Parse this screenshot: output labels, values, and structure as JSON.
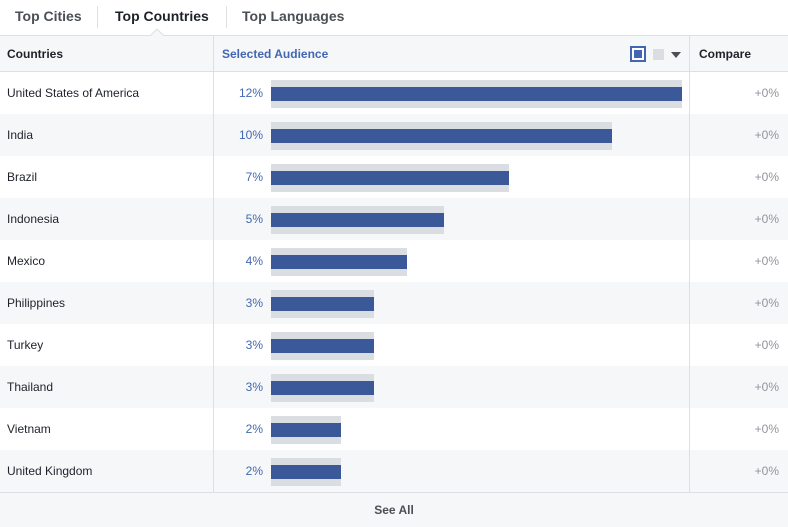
{
  "tabs": [
    {
      "label": "Top Cities",
      "active": false
    },
    {
      "label": "Top Countries",
      "active": true
    },
    {
      "label": "Top Languages",
      "active": false
    }
  ],
  "table": {
    "col_countries": "Countries",
    "col_selected": "Selected Audience",
    "col_compare": "Compare",
    "legend": {
      "selected_color": "#4267b2",
      "compare_color": "#dadde1",
      "dropdown_icon": "chevron-down-icon"
    }
  },
  "colors": {
    "bar_fill": "#3b5998",
    "bar_track": "#dadde1",
    "link_blue": "#4267b2"
  },
  "chart_data": {
    "type": "bar",
    "categories": [
      "United States of America",
      "India",
      "Brazil",
      "Indonesia",
      "Mexico",
      "Philippines",
      "Turkey",
      "Thailand",
      "Vietnam",
      "United Kingdom"
    ],
    "values": [
      12,
      10,
      7,
      5,
      4,
      3,
      3,
      3,
      2,
      2
    ],
    "value_labels": [
      "12%",
      "10%",
      "7%",
      "5%",
      "4%",
      "3%",
      "3%",
      "3%",
      "2%",
      "2%"
    ],
    "bar_fill_fraction": [
      1.0,
      0.83,
      0.58,
      0.42,
      0.33,
      0.25,
      0.25,
      0.25,
      0.17,
      0.17
    ],
    "track_fill_fraction": [
      1.0,
      0.83,
      0.58,
      0.42,
      0.33,
      0.25,
      0.25,
      0.25,
      0.17,
      0.17
    ],
    "compare": [
      "+0%",
      "+0%",
      "+0%",
      "+0%",
      "+0%",
      "+0%",
      "+0%",
      "+0%",
      "+0%",
      "+0%"
    ]
  },
  "footer": {
    "see_all": "See All"
  }
}
